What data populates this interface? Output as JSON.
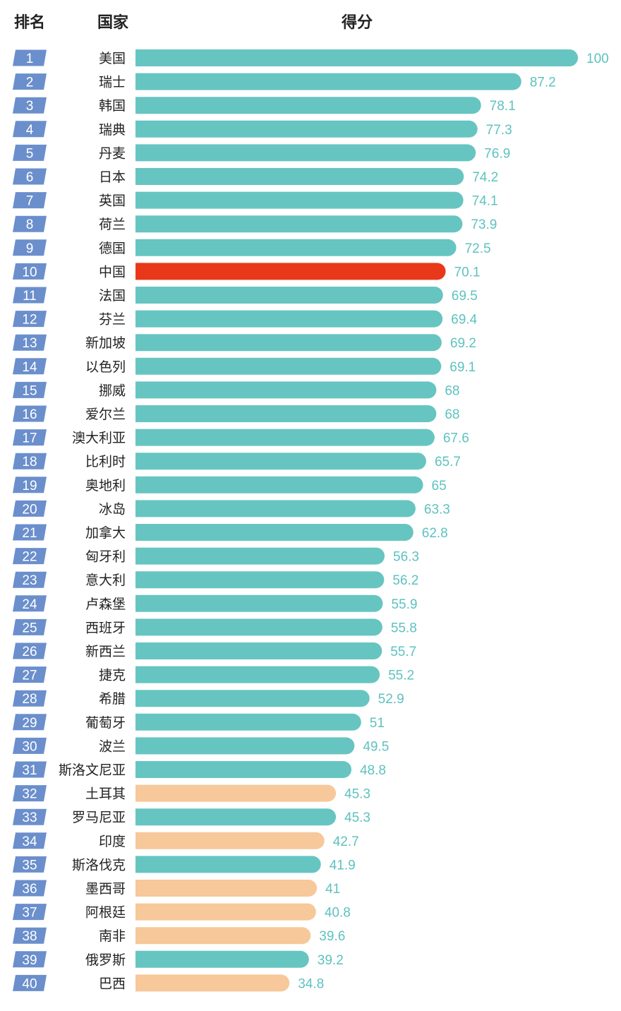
{
  "headers": {
    "rank": "排名",
    "country": "国家",
    "score": "得分"
  },
  "colors": {
    "default": "#66c5c1",
    "highlight": "#e83819",
    "alt": "#f7c89a",
    "rank_badge": "#6b8fcc",
    "value_text": "#5ec2bf"
  },
  "chart_data": {
    "type": "bar",
    "orientation": "horizontal",
    "title": "",
    "xlim": [
      0,
      100
    ],
    "rows": [
      {
        "rank": "1",
        "country": "美国",
        "value": 100,
        "color": "default"
      },
      {
        "rank": "2",
        "country": "瑞士",
        "value": 87.2,
        "color": "default"
      },
      {
        "rank": "3",
        "country": "韩国",
        "value": 78.1,
        "color": "default"
      },
      {
        "rank": "4",
        "country": "瑞典",
        "value": 77.3,
        "color": "default"
      },
      {
        "rank": "5",
        "country": "丹麦",
        "value": 76.9,
        "color": "default"
      },
      {
        "rank": "6",
        "country": "日本",
        "value": 74.2,
        "color": "default"
      },
      {
        "rank": "7",
        "country": "英国",
        "value": 74.1,
        "color": "default"
      },
      {
        "rank": "8",
        "country": "荷兰",
        "value": 73.9,
        "color": "default"
      },
      {
        "rank": "9",
        "country": "德国",
        "value": 72.5,
        "color": "default"
      },
      {
        "rank": "10",
        "country": "中国",
        "value": 70.1,
        "color": "highlight"
      },
      {
        "rank": "11",
        "country": "法国",
        "value": 69.5,
        "color": "default"
      },
      {
        "rank": "12",
        "country": "芬兰",
        "value": 69.4,
        "color": "default"
      },
      {
        "rank": "13",
        "country": "新加坡",
        "value": 69.2,
        "color": "default"
      },
      {
        "rank": "14",
        "country": "以色列",
        "value": 69.1,
        "color": "default"
      },
      {
        "rank": "15",
        "country": "挪威",
        "value": 68,
        "color": "default"
      },
      {
        "rank": "16",
        "country": "爱尔兰",
        "value": 68,
        "color": "default"
      },
      {
        "rank": "17",
        "country": "澳大利亚",
        "value": 67.6,
        "color": "default"
      },
      {
        "rank": "18",
        "country": "比利时",
        "value": 65.7,
        "color": "default"
      },
      {
        "rank": "19",
        "country": "奥地利",
        "value": 65,
        "color": "default"
      },
      {
        "rank": "20",
        "country": "冰岛",
        "value": 63.3,
        "color": "default"
      },
      {
        "rank": "21",
        "country": "加拿大",
        "value": 62.8,
        "color": "default"
      },
      {
        "rank": "22",
        "country": "匈牙利",
        "value": 56.3,
        "color": "default"
      },
      {
        "rank": "23",
        "country": "意大利",
        "value": 56.2,
        "color": "default"
      },
      {
        "rank": "24",
        "country": "卢森堡",
        "value": 55.9,
        "color": "default"
      },
      {
        "rank": "25",
        "country": "西班牙",
        "value": 55.8,
        "color": "default"
      },
      {
        "rank": "26",
        "country": "新西兰",
        "value": 55.7,
        "color": "default"
      },
      {
        "rank": "27",
        "country": "捷克",
        "value": 55.2,
        "color": "default"
      },
      {
        "rank": "28",
        "country": "希腊",
        "value": 52.9,
        "color": "default"
      },
      {
        "rank": "29",
        "country": "葡萄牙",
        "value": 51,
        "color": "default"
      },
      {
        "rank": "30",
        "country": "波兰",
        "value": 49.5,
        "color": "default"
      },
      {
        "rank": "31",
        "country": "斯洛文尼亚",
        "value": 48.8,
        "color": "default"
      },
      {
        "rank": "32",
        "country": "土耳其",
        "value": 45.3,
        "color": "alt"
      },
      {
        "rank": "33",
        "country": "罗马尼亚",
        "value": 45.3,
        "color": "default"
      },
      {
        "rank": "34",
        "country": "印度",
        "value": 42.7,
        "color": "alt"
      },
      {
        "rank": "35",
        "country": "斯洛伐克",
        "value": 41.9,
        "color": "default"
      },
      {
        "rank": "36",
        "country": "墨西哥",
        "value": 41,
        "color": "alt"
      },
      {
        "rank": "37",
        "country": "阿根廷",
        "value": 40.8,
        "color": "alt"
      },
      {
        "rank": "38",
        "country": "南非",
        "value": 39.6,
        "color": "alt"
      },
      {
        "rank": "39",
        "country": "俄罗斯",
        "value": 39.2,
        "color": "default"
      },
      {
        "rank": "40",
        "country": "巴西",
        "value": 34.8,
        "color": "alt"
      }
    ]
  }
}
